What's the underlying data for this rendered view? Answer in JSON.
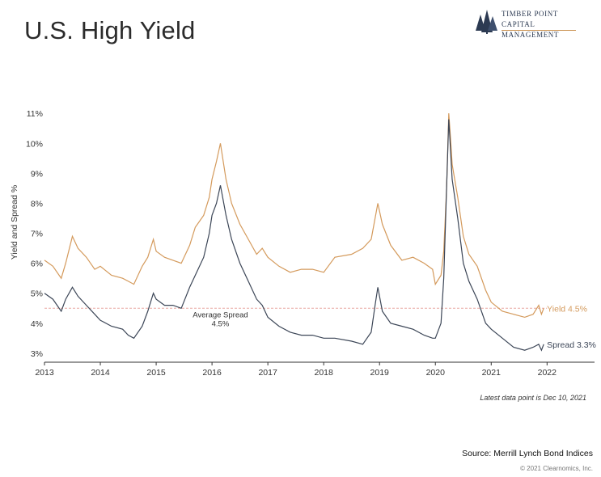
{
  "title": "U.S. High Yield",
  "logo": {
    "line1": "Timber Point",
    "line2": "Capital Management"
  },
  "chart_data": {
    "type": "line",
    "title": "U.S. High Yield",
    "ylabel": "Yield and Spread %",
    "xlabel": "",
    "xlim": [
      2013,
      2022.85
    ],
    "ylim": [
      2.7,
      11.6
    ],
    "x_ticks": [
      2013,
      2014,
      2015,
      2016,
      2017,
      2018,
      2019,
      2020,
      2021,
      2022
    ],
    "x_tick_labels": [
      "2013",
      "2014",
      "2015",
      "2016",
      "2017",
      "2018",
      "2019",
      "2020",
      "2021",
      "2022"
    ],
    "y_ticks": [
      3,
      4,
      5,
      6,
      7,
      8,
      9,
      10,
      11
    ],
    "y_tick_labels": [
      "3%",
      "4%",
      "5%",
      "6%",
      "7%",
      "8%",
      "9%",
      "10%",
      "11%"
    ],
    "grid": false,
    "series": [
      {
        "name": "Yield",
        "end_label": "Yield 4.5%",
        "color": "#d49a5c",
        "x": [
          2013.0,
          2013.15,
          2013.3,
          2013.38,
          2013.5,
          2013.6,
          2013.75,
          2013.9,
          2014.0,
          2014.2,
          2014.4,
          2014.5,
          2014.6,
          2014.75,
          2014.85,
          2014.95,
          2015.0,
          2015.15,
          2015.3,
          2015.45,
          2015.6,
          2015.7,
          2015.85,
          2015.95,
          2016.0,
          2016.08,
          2016.15,
          2016.25,
          2016.35,
          2016.5,
          2016.65,
          2016.8,
          2016.9,
          2017.0,
          2017.2,
          2017.4,
          2017.6,
          2017.8,
          2018.0,
          2018.2,
          2018.5,
          2018.7,
          2018.85,
          2018.92,
          2018.97,
          2019.05,
          2019.2,
          2019.4,
          2019.6,
          2019.8,
          2019.95,
          2020.0,
          2020.1,
          2020.15,
          2020.2,
          2020.24,
          2020.27,
          2020.3,
          2020.4,
          2020.5,
          2020.6,
          2020.75,
          2020.9,
          2021.0,
          2021.2,
          2021.4,
          2021.6,
          2021.75,
          2021.85,
          2021.9,
          2021.94
        ],
        "values": [
          6.1,
          5.9,
          5.5,
          6.0,
          6.9,
          6.5,
          6.2,
          5.8,
          5.9,
          5.6,
          5.5,
          5.4,
          5.3,
          5.9,
          6.2,
          6.8,
          6.4,
          6.2,
          6.1,
          6.0,
          6.6,
          7.2,
          7.6,
          8.2,
          8.8,
          9.4,
          10.0,
          8.8,
          8.0,
          7.3,
          6.8,
          6.3,
          6.5,
          6.2,
          5.9,
          5.7,
          5.8,
          5.8,
          5.7,
          6.2,
          6.3,
          6.5,
          6.8,
          7.5,
          8.0,
          7.3,
          6.6,
          6.1,
          6.2,
          6.0,
          5.8,
          5.3,
          5.6,
          6.4,
          8.5,
          11.0,
          10.2,
          9.3,
          8.2,
          6.9,
          6.3,
          5.9,
          5.1,
          4.7,
          4.4,
          4.3,
          4.2,
          4.3,
          4.6,
          4.3,
          4.5
        ]
      },
      {
        "name": "Spread",
        "end_label": "Spread 3.3%",
        "color": "#3c4657",
        "x": [
          2013.0,
          2013.15,
          2013.3,
          2013.38,
          2013.5,
          2013.6,
          2013.75,
          2013.9,
          2014.0,
          2014.2,
          2014.4,
          2014.5,
          2014.6,
          2014.75,
          2014.85,
          2014.95,
          2015.0,
          2015.15,
          2015.3,
          2015.45,
          2015.6,
          2015.7,
          2015.85,
          2015.95,
          2016.0,
          2016.08,
          2016.15,
          2016.25,
          2016.35,
          2016.5,
          2016.65,
          2016.8,
          2016.9,
          2017.0,
          2017.2,
          2017.4,
          2017.6,
          2017.8,
          2018.0,
          2018.2,
          2018.5,
          2018.7,
          2018.85,
          2018.92,
          2018.97,
          2019.05,
          2019.2,
          2019.4,
          2019.6,
          2019.8,
          2019.95,
          2020.0,
          2020.1,
          2020.15,
          2020.2,
          2020.24,
          2020.27,
          2020.3,
          2020.4,
          2020.5,
          2020.6,
          2020.75,
          2020.9,
          2021.0,
          2021.2,
          2021.4,
          2021.6,
          2021.75,
          2021.85,
          2021.9,
          2021.94
        ],
        "values": [
          5.0,
          4.8,
          4.4,
          4.8,
          5.2,
          4.9,
          4.6,
          4.3,
          4.1,
          3.9,
          3.8,
          3.6,
          3.5,
          3.9,
          4.4,
          5.0,
          4.8,
          4.6,
          4.6,
          4.5,
          5.2,
          5.6,
          6.2,
          7.0,
          7.6,
          8.0,
          8.6,
          7.6,
          6.8,
          6.0,
          5.4,
          4.8,
          4.6,
          4.2,
          3.9,
          3.7,
          3.6,
          3.6,
          3.5,
          3.5,
          3.4,
          3.3,
          3.7,
          4.6,
          5.2,
          4.4,
          4.0,
          3.9,
          3.8,
          3.6,
          3.5,
          3.5,
          4.0,
          5.5,
          8.5,
          10.8,
          9.8,
          8.8,
          7.5,
          6.0,
          5.4,
          4.8,
          4.0,
          3.8,
          3.5,
          3.2,
          3.1,
          3.2,
          3.3,
          3.1,
          3.3
        ]
      }
    ],
    "reference_line": {
      "value": 4.5,
      "label_line1": "Average Spread",
      "label_line2": "4.5%",
      "color": "#e9a7a0"
    },
    "legend": "none"
  },
  "note": "Latest data point is Dec 10, 2021",
  "source": "Source: Merrill Lynch Bond Indices",
  "copyright": "© 2021 Clearnomics, Inc."
}
